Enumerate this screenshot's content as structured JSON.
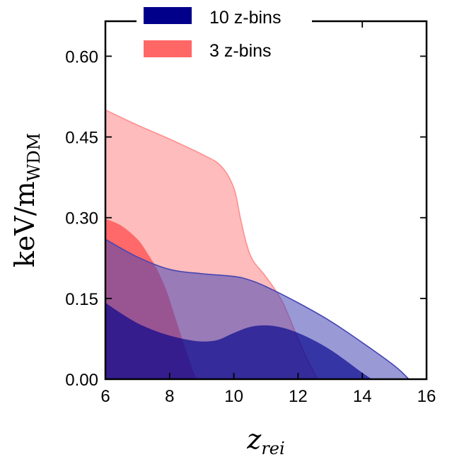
{
  "chart_data": {
    "type": "area",
    "xlabel": {
      "main": "z",
      "sub": "rei"
    },
    "ylabel": {
      "main": "keV/m",
      "sub": "WDM"
    },
    "xlim": [
      6,
      16
    ],
    "ylim": [
      0,
      0.665
    ],
    "xticks": [
      6,
      8,
      10,
      12,
      14,
      16
    ],
    "xtick_labels": [
      "6",
      "8",
      "10",
      "12",
      "14",
      "16"
    ],
    "yticks": [
      0.0,
      0.15,
      0.3,
      0.45,
      0.6
    ],
    "ytick_labels": [
      "0.00",
      "0.15",
      "0.30",
      "0.45",
      "0.60"
    ],
    "legend_position": "top-center",
    "legend": [
      {
        "label": "10 z-bins",
        "color": "#00008b"
      },
      {
        "label": "3 z-bins",
        "color": "#ff6666"
      }
    ],
    "series": [
      {
        "name": "3 z-bins",
        "level": "outer",
        "color": "#ff8f8f",
        "opacity": 0.6,
        "x": [
          6.0,
          7.0,
          8.0,
          9.0,
          9.6,
          10.0,
          10.2,
          10.4,
          10.6,
          11.0,
          11.5,
          12.0,
          12.3,
          12.6
        ],
        "y": [
          0.5,
          0.472,
          0.446,
          0.418,
          0.396,
          0.355,
          0.3,
          0.25,
          0.22,
          0.19,
          0.145,
          0.075,
          0.035,
          0.0
        ]
      },
      {
        "name": "3 z-bins",
        "level": "inner",
        "color": "#ff4d4d",
        "opacity": 0.75,
        "x": [
          6.0,
          6.5,
          7.0,
          7.3,
          7.6,
          7.9,
          8.2,
          8.5,
          8.7,
          8.85
        ],
        "y": [
          0.298,
          0.285,
          0.26,
          0.235,
          0.205,
          0.165,
          0.11,
          0.055,
          0.02,
          0.0
        ]
      },
      {
        "name": "10 z-bins",
        "level": "outer",
        "color": "#4646b4",
        "opacity": 0.55,
        "x": [
          6.0,
          7.0,
          8.0,
          9.0,
          10.0,
          10.5,
          11.0,
          12.0,
          13.0,
          14.0,
          15.0,
          15.45
        ],
        "y": [
          0.26,
          0.227,
          0.204,
          0.196,
          0.191,
          0.184,
          0.172,
          0.142,
          0.108,
          0.068,
          0.025,
          0.0
        ]
      },
      {
        "name": "10 z-bins",
        "level": "inner",
        "color": "#00008b",
        "opacity": 0.65,
        "x": [
          6.0,
          6.5,
          7.0,
          7.5,
          8.0,
          8.5,
          9.0,
          9.5,
          10.0,
          10.5,
          11.0,
          11.5,
          12.0,
          12.5,
          13.0,
          13.5,
          14.0,
          14.3
        ],
        "y": [
          0.142,
          0.122,
          0.104,
          0.091,
          0.081,
          0.074,
          0.07,
          0.073,
          0.086,
          0.097,
          0.1,
          0.096,
          0.086,
          0.072,
          0.055,
          0.034,
          0.012,
          0.0
        ]
      }
    ]
  }
}
